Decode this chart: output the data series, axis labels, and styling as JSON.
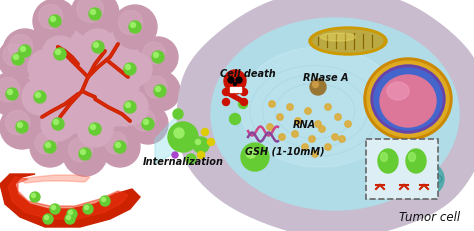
{
  "title": "",
  "background_color": "#ffffff",
  "labels": {
    "cell_death": "Cell death",
    "rnase_a": "RNase A",
    "rna": "RNA",
    "internalization": "Internalization",
    "gsh": "GSH (1-10mM)",
    "tumor_cell": "Tumor cell"
  },
  "colors": {
    "tumor_mass_pink": "#d4a8be",
    "tumor_mass_mid": "#c899ae",
    "tumor_mass_dark": "#b8889e",
    "blood_vessel_red": "#cc2200",
    "blood_vessel_bright": "#ee3311",
    "cell_interior_blue": "#b0dce8",
    "cell_interior_light": "#c8eaf4",
    "cell_border_lavender": "#c8bcce",
    "cell_border_light": "#ddd0e2",
    "nanoparticle_green": "#66cc33",
    "nanoparticle_light": "#99ee66",
    "nanoparticle_dark": "#44aa22",
    "nucleus_outer_gold": "#cc8800",
    "nucleus_ring_gold": "#ddaa22",
    "nucleus_purple": "#6644aa",
    "nucleus_blue_ring": "#4466cc",
    "nucleus_pink": "#dd7799",
    "nucleus_pink_light": "#ee99bb",
    "mito_gold": "#cc9900",
    "mito_inner": "#bbaa44",
    "skull_red": "#cc1100",
    "skull_bright": "#ee2200",
    "yellow_mol": "#ddcc00",
    "purple_mol": "#aa44cc",
    "brown_dot": "#997733",
    "brown_dot_light": "#cc9944",
    "wave_pink": "#cc4488",
    "wave_purple": "#884499",
    "arrow_color": "#222222",
    "text_color": "#111111",
    "cone_cyan": "#88dde8",
    "er_teal": "#44aaaa",
    "er_light": "#66cccc",
    "box_bg": "#ddeef4",
    "box_edge": "#666666",
    "red_mark": "#cc2200"
  },
  "figsize": [
    4.74,
    2.32
  ],
  "dpi": 100
}
